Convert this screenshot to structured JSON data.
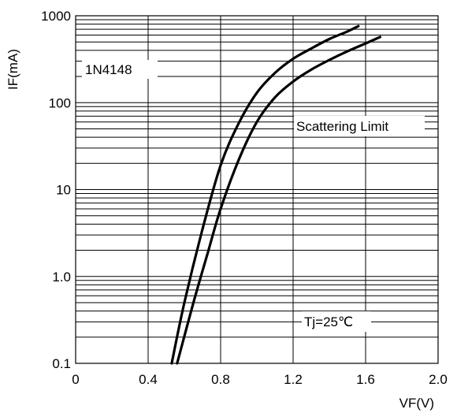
{
  "chart_data": {
    "type": "line",
    "xlabel": "VF(V)",
    "ylabel": "IF(mA)",
    "xlim": [
      0,
      2.0
    ],
    "ylim": [
      0.1,
      1000
    ],
    "y_scale": "log",
    "grid": true,
    "x_ticks": [
      "0",
      "0.4",
      "0.8",
      "1.2",
      "1.6",
      "2.0"
    ],
    "x_tick_values": [
      0,
      0.4,
      0.8,
      1.2,
      1.6,
      2.0
    ],
    "y_ticks": [
      "0.1",
      "1.0",
      "10",
      "100",
      "1000"
    ],
    "y_tick_values": [
      0.1,
      1,
      10,
      100,
      1000
    ],
    "annotations": {
      "device": "1N4148",
      "scatter": "Scattering Limit",
      "temperature": "Tj=25℃"
    },
    "series": [
      {
        "points": [
          [
            0.53,
            0.1
          ],
          [
            0.6,
            0.5
          ],
          [
            0.7,
            3.5
          ],
          [
            0.8,
            19
          ],
          [
            0.9,
            58
          ],
          [
            1.0,
            130
          ],
          [
            1.1,
            220
          ],
          [
            1.2,
            320
          ],
          [
            1.3,
            420
          ],
          [
            1.4,
            540
          ],
          [
            1.5,
            660
          ],
          [
            1.56,
            760
          ]
        ]
      },
      {
        "points": [
          [
            0.56,
            0.1
          ],
          [
            0.65,
            0.5
          ],
          [
            0.73,
            1.9
          ],
          [
            0.8,
            6
          ],
          [
            0.9,
            22
          ],
          [
            1.0,
            60
          ],
          [
            1.1,
            115
          ],
          [
            1.2,
            175
          ],
          [
            1.3,
            240
          ],
          [
            1.4,
            310
          ],
          [
            1.5,
            390
          ],
          [
            1.6,
            480
          ],
          [
            1.68,
            570
          ]
        ]
      }
    ]
  }
}
